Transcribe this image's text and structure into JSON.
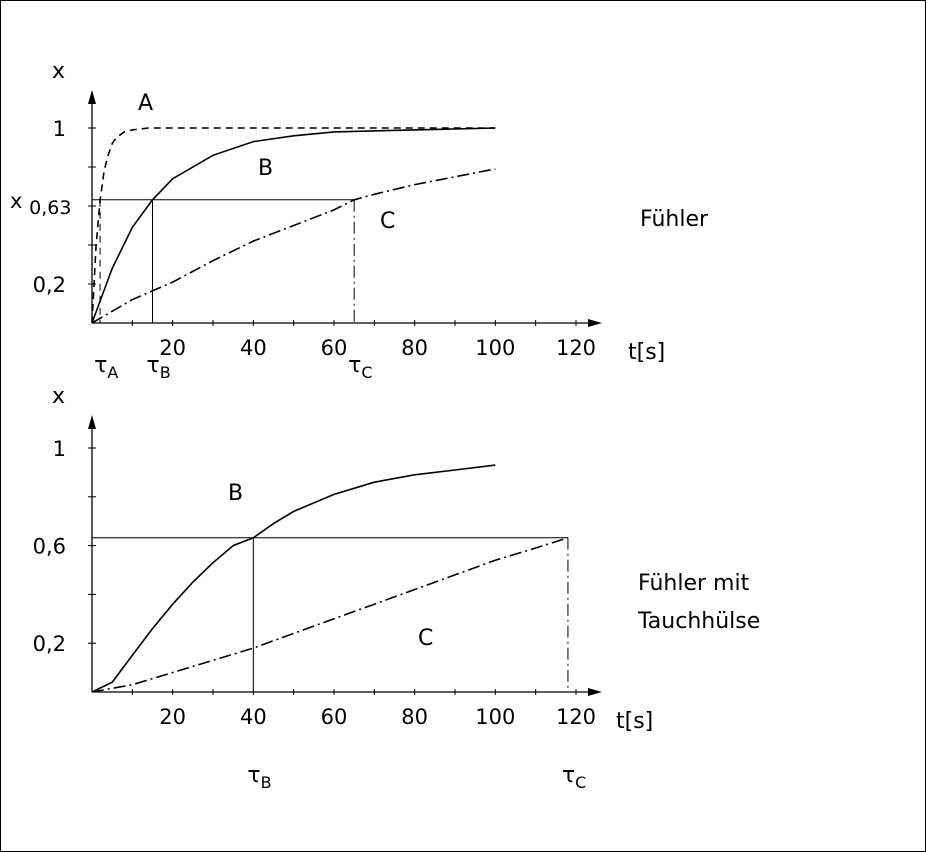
{
  "chart_data": [
    {
      "type": "line",
      "panel_label": "Fühler",
      "ylabel": "x",
      "xlabel": "t[s]",
      "xlim": [
        0,
        120
      ],
      "ylim": [
        0,
        1
      ],
      "x_ticks": [
        20,
        40,
        60,
        80,
        100,
        120
      ],
      "y_ticks": [
        {
          "value": 0.2,
          "label": "0,2"
        },
        {
          "value": 0.632,
          "label": "x 0,63"
        },
        {
          "value": 1,
          "label": "1"
        }
      ],
      "reference_level": 0.632,
      "series": [
        {
          "name": "A",
          "style": "dashed",
          "x": [
            0,
            1,
            2,
            3,
            4,
            5,
            6,
            8,
            10,
            14,
            20,
            30,
            60,
            100
          ],
          "y": [
            0,
            0.39,
            0.63,
            0.78,
            0.86,
            0.92,
            0.95,
            0.98,
            0.99,
            1.0,
            1.0,
            1.0,
            1.0,
            1.0
          ],
          "tau_label": "τA",
          "tau": 2
        },
        {
          "name": "B",
          "style": "solid",
          "x": [
            0,
            5,
            10,
            15,
            20,
            30,
            40,
            50,
            60,
            80,
            100
          ],
          "y": [
            0,
            0.28,
            0.49,
            0.632,
            0.74,
            0.86,
            0.93,
            0.96,
            0.98,
            0.99,
            1.0
          ],
          "tau_label": "τB",
          "tau": 15
        },
        {
          "name": "C",
          "style": "dashdot",
          "x": [
            0,
            10,
            20,
            30,
            40,
            50,
            60,
            65,
            70,
            80,
            90,
            100
          ],
          "y": [
            0,
            0.12,
            0.21,
            0.32,
            0.42,
            0.5,
            0.58,
            0.632,
            0.66,
            0.71,
            0.75,
            0.79
          ],
          "tau_label": "τC",
          "tau": 65
        }
      ]
    },
    {
      "type": "line",
      "panel_label_lines": [
        "Fühler mit",
        "Tauchhülse"
      ],
      "ylabel": "x",
      "xlabel": "t[s]",
      "xlim": [
        0,
        120
      ],
      "ylim": [
        0,
        1
      ],
      "x_ticks": [
        20,
        40,
        60,
        80,
        100,
        120
      ],
      "y_ticks": [
        {
          "value": 0.2,
          "label": "0,2"
        },
        {
          "value": 0.6,
          "label": "0,6"
        },
        {
          "value": 1,
          "label": "1"
        }
      ],
      "reference_level": 0.632,
      "series": [
        {
          "name": "B",
          "style": "solid",
          "x": [
            0,
            5,
            10,
            15,
            20,
            25,
            30,
            35,
            40,
            45,
            50,
            60,
            70,
            80,
            90,
            100
          ],
          "y": [
            0,
            0.04,
            0.15,
            0.26,
            0.36,
            0.45,
            0.53,
            0.6,
            0.632,
            0.69,
            0.74,
            0.81,
            0.86,
            0.89,
            0.91,
            0.93
          ],
          "tau_label": "τB",
          "tau": 40
        },
        {
          "name": "C",
          "style": "dashdot",
          "x": [
            0,
            10,
            20,
            30,
            40,
            50,
            60,
            70,
            80,
            90,
            100,
            110,
            118
          ],
          "y": [
            0,
            0.03,
            0.08,
            0.13,
            0.18,
            0.24,
            0.3,
            0.36,
            0.42,
            0.48,
            0.54,
            0.59,
            0.632
          ],
          "tau_label": "τC",
          "tau": 118
        }
      ]
    }
  ]
}
